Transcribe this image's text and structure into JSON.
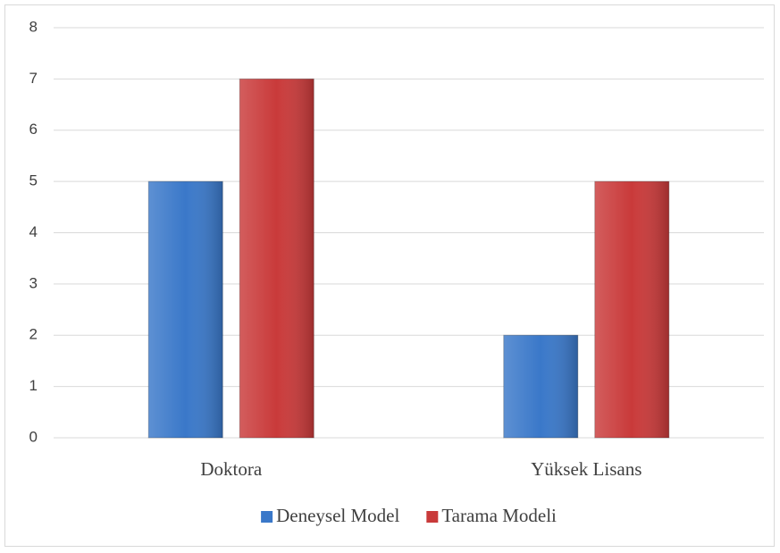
{
  "chart_data": {
    "type": "bar",
    "categories": [
      "Doktora",
      "Yüksek Lisans"
    ],
    "series": [
      {
        "name": "Deneysel Model",
        "color": "#3a78c9",
        "values": [
          5,
          2
        ]
      },
      {
        "name": "Tarama Modeli",
        "color": "#c93a3a",
        "values": [
          7,
          5
        ]
      }
    ],
    "ylim": [
      0,
      8
    ],
    "yticks": [
      0,
      1,
      2,
      3,
      4,
      5,
      6,
      7,
      8
    ],
    "grid": true,
    "legend": "bottom"
  }
}
